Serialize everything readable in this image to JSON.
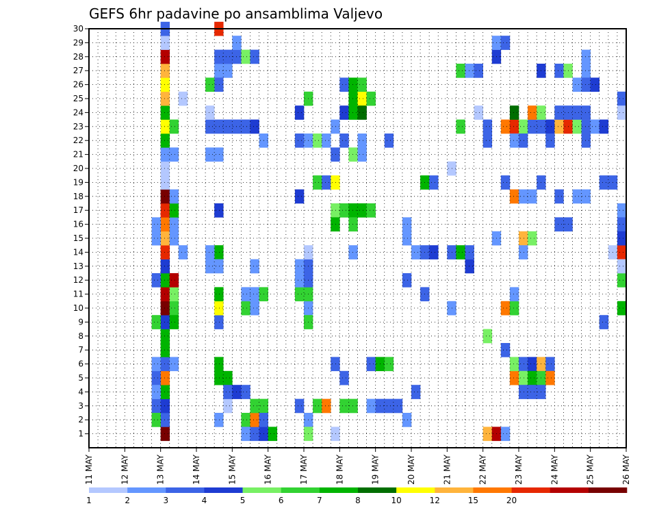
{
  "chart_data": {
    "type": "heatmap",
    "title": "GEFS 6hr padavine po ansamblima Valjevo",
    "xlabel": "",
    "ylabel": "",
    "x_ticks": [
      "11 MAY",
      "12 MAY",
      "13 MAY",
      "14 MAY",
      "15 MAY",
      "16 MAY",
      "17 MAY",
      "18 MAY",
      "19 MAY",
      "20 MAY",
      "21 MAY",
      "22 MAY",
      "23 MAY",
      "24 MAY",
      "25 MAY",
      "26 MAY"
    ],
    "y_ticks": [
      "1",
      "2",
      "3",
      "4",
      "5",
      "6",
      "7",
      "8",
      "9",
      "10",
      "11",
      "12",
      "13",
      "14",
      "15",
      "16",
      "17",
      "18",
      "19",
      "20",
      "21",
      "22",
      "23",
      "24",
      "25",
      "26",
      "27",
      "28",
      "29",
      "30"
    ],
    "xlim": [
      0,
      60
    ],
    "ylim": [
      0,
      30
    ],
    "grid": true,
    "legend_position": "bottom",
    "levels": [
      "1",
      "2",
      "3",
      "4",
      "5",
      "6",
      "7",
      "8",
      "10",
      "12",
      "15",
      "20"
    ],
    "colors": [
      "#b4c8ff",
      "#6496ff",
      "#3c64e6",
      "#1e3cd2",
      "#78f064",
      "#32d232",
      "#00b400",
      "#006e00",
      "#ffff00",
      "#ffb43c",
      "#ff7800",
      "#e62800",
      "#b40000",
      "#780000"
    ],
    "cells": [
      [
        8,
        1,
        14
      ],
      [
        8,
        2,
        3
      ],
      [
        8,
        3,
        4
      ],
      [
        8,
        4,
        7
      ],
      [
        8,
        5,
        11
      ],
      [
        8,
        6,
        3
      ],
      [
        8,
        7,
        7
      ],
      [
        8,
        8,
        7
      ],
      [
        8,
        9,
        4
      ],
      [
        8,
        10,
        14
      ],
      [
        8,
        11,
        13
      ],
      [
        8,
        12,
        7
      ],
      [
        8,
        13,
        4
      ],
      [
        8,
        14,
        12
      ],
      [
        8,
        15,
        10
      ],
      [
        8,
        16,
        11
      ],
      [
        8,
        17,
        12
      ],
      [
        8,
        18,
        14
      ],
      [
        8,
        19,
        1
      ],
      [
        8,
        20,
        1
      ],
      [
        8,
        21,
        2
      ],
      [
        8,
        22,
        7
      ],
      [
        8,
        23,
        9
      ],
      [
        8,
        24,
        7
      ],
      [
        8,
        25,
        10
      ],
      [
        8,
        26,
        9
      ],
      [
        8,
        27,
        10
      ],
      [
        8,
        28,
        13
      ],
      [
        8,
        29,
        1
      ],
      [
        8,
        30,
        3
      ],
      [
        7,
        9,
        6
      ],
      [
        7,
        5,
        3
      ],
      [
        7,
        3,
        3
      ],
      [
        7,
        2,
        6
      ],
      [
        7,
        4,
        2
      ],
      [
        7,
        6,
        2
      ],
      [
        7,
        15,
        2
      ],
      [
        7,
        16,
        2
      ],
      [
        7,
        12,
        3
      ],
      [
        9,
        10,
        6
      ],
      [
        9,
        11,
        5
      ],
      [
        9,
        9,
        7
      ],
      [
        9,
        12,
        13
      ],
      [
        9,
        15,
        2
      ],
      [
        9,
        16,
        2
      ],
      [
        9,
        17,
        7
      ],
      [
        9,
        18,
        2
      ],
      [
        9,
        23,
        6
      ],
      [
        9,
        21,
        2
      ],
      [
        9,
        6,
        2
      ],
      [
        10,
        25,
        1
      ],
      [
        10,
        14,
        2
      ],
      [
        14,
        27,
        2
      ],
      [
        14,
        28,
        3
      ],
      [
        14,
        14,
        7
      ],
      [
        14,
        13,
        2
      ],
      [
        14,
        9,
        3
      ],
      [
        14,
        10,
        9
      ],
      [
        14,
        11,
        7
      ],
      [
        14,
        6,
        7
      ],
      [
        14,
        5,
        7
      ],
      [
        14,
        23,
        3
      ],
      [
        14,
        21,
        2
      ],
      [
        14,
        26,
        3
      ],
      [
        14,
        17,
        4
      ],
      [
        14,
        2,
        2
      ],
      [
        14,
        30,
        12
      ],
      [
        13,
        26,
        6
      ],
      [
        13,
        21,
        2
      ],
      [
        13,
        23,
        3
      ],
      [
        13,
        14,
        2
      ],
      [
        13,
        13,
        2
      ],
      [
        13,
        24,
        1
      ],
      [
        15,
        27,
        2
      ],
      [
        15,
        28,
        3
      ],
      [
        15,
        23,
        3
      ],
      [
        15,
        5,
        7
      ],
      [
        15,
        3,
        1
      ],
      [
        15,
        4,
        3
      ],
      [
        16,
        28,
        3
      ],
      [
        16,
        23,
        3
      ],
      [
        16,
        29,
        2
      ],
      [
        16,
        4,
        4
      ],
      [
        17,
        28,
        5
      ],
      [
        17,
        23,
        3
      ],
      [
        17,
        10,
        6
      ],
      [
        17,
        11,
        2
      ],
      [
        17,
        2,
        6
      ],
      [
        17,
        1,
        2
      ],
      [
        17,
        4,
        3
      ],
      [
        18,
        28,
        3
      ],
      [
        18,
        23,
        4
      ],
      [
        18,
        13,
        2
      ],
      [
        18,
        10,
        2
      ],
      [
        18,
        11,
        2
      ],
      [
        18,
        1,
        3
      ],
      [
        18,
        2,
        11
      ],
      [
        18,
        3,
        6
      ],
      [
        19,
        11,
        6
      ],
      [
        19,
        3,
        6
      ],
      [
        19,
        1,
        4
      ],
      [
        19,
        2,
        3
      ],
      [
        19,
        22,
        2
      ],
      [
        20,
        1,
        7
      ],
      [
        23,
        24,
        4
      ],
      [
        23,
        18,
        4
      ],
      [
        23,
        22,
        3
      ],
      [
        23,
        11,
        6
      ],
      [
        23,
        12,
        2
      ],
      [
        23,
        13,
        2
      ],
      [
        23,
        3,
        3
      ],
      [
        24,
        10,
        2
      ],
      [
        24,
        11,
        6
      ],
      [
        24,
        12,
        3
      ],
      [
        24,
        13,
        3
      ],
      [
        24,
        14,
        1
      ],
      [
        24,
        22,
        2
      ],
      [
        24,
        25,
        6
      ],
      [
        24,
        2,
        2
      ],
      [
        24,
        1,
        5
      ],
      [
        24,
        9,
        6
      ],
      [
        25,
        19,
        6
      ],
      [
        25,
        22,
        5
      ],
      [
        25,
        3,
        6
      ],
      [
        26,
        19,
        3
      ],
      [
        26,
        3,
        11
      ],
      [
        26,
        22,
        2
      ],
      [
        27,
        19,
        9
      ],
      [
        27,
        23,
        2
      ],
      [
        27,
        17,
        5
      ],
      [
        27,
        16,
        7
      ],
      [
        27,
        6,
        3
      ],
      [
        27,
        21,
        3
      ],
      [
        27,
        1,
        1
      ],
      [
        28,
        17,
        6
      ],
      [
        28,
        26,
        3
      ],
      [
        28,
        24,
        4
      ],
      [
        28,
        22,
        3
      ],
      [
        28,
        3,
        6
      ],
      [
        28,
        5,
        3
      ],
      [
        29,
        17,
        7
      ],
      [
        29,
        26,
        7
      ],
      [
        29,
        25,
        7
      ],
      [
        29,
        24,
        7
      ],
      [
        29,
        16,
        6
      ],
      [
        29,
        3,
        6
      ],
      [
        29,
        14,
        2
      ],
      [
        29,
        21,
        5
      ],
      [
        30,
        17,
        7
      ],
      [
        30,
        25,
        9
      ],
      [
        30,
        26,
        6
      ],
      [
        30,
        24,
        8
      ],
      [
        30,
        21,
        2
      ],
      [
        30,
        22,
        2
      ],
      [
        31,
        17,
        6
      ],
      [
        31,
        25,
        6
      ],
      [
        31,
        6,
        3
      ],
      [
        31,
        3,
        2
      ],
      [
        32,
        6,
        7
      ],
      [
        32,
        3,
        3
      ],
      [
        33,
        6,
        6
      ],
      [
        33,
        22,
        3
      ],
      [
        33,
        3,
        3
      ],
      [
        34,
        3,
        3
      ],
      [
        35,
        2,
        2
      ],
      [
        35,
        15,
        2
      ],
      [
        35,
        16,
        2
      ],
      [
        35,
        12,
        3
      ],
      [
        36,
        14,
        2
      ],
      [
        36,
        4,
        3
      ],
      [
        37,
        11,
        3
      ],
      [
        37,
        19,
        7
      ],
      [
        37,
        14,
        3
      ],
      [
        38,
        19,
        3
      ],
      [
        38,
        14,
        4
      ],
      [
        40,
        14,
        3
      ],
      [
        40,
        10,
        2
      ],
      [
        40,
        20,
        1
      ],
      [
        41,
        14,
        7
      ],
      [
        41,
        23,
        6
      ],
      [
        41,
        27,
        6
      ],
      [
        42,
        13,
        4
      ],
      [
        42,
        14,
        3
      ],
      [
        42,
        27,
        2
      ],
      [
        43,
        27,
        3
      ],
      [
        43,
        24,
        1
      ],
      [
        44,
        1,
        10
      ],
      [
        44,
        8,
        5
      ],
      [
        44,
        23,
        3
      ],
      [
        44,
        22,
        3
      ],
      [
        45,
        1,
        13
      ],
      [
        45,
        15,
        2
      ],
      [
        45,
        28,
        4
      ],
      [
        45,
        29,
        2
      ],
      [
        46,
        19,
        3
      ],
      [
        46,
        10,
        11
      ],
      [
        46,
        23,
        11
      ],
      [
        46,
        7,
        3
      ],
      [
        46,
        29,
        3
      ],
      [
        46,
        1,
        2
      ],
      [
        47,
        10,
        6
      ],
      [
        47,
        11,
        2
      ],
      [
        47,
        23,
        12
      ],
      [
        47,
        18,
        11
      ],
      [
        47,
        22,
        2
      ],
      [
        47,
        24,
        8
      ],
      [
        47,
        5,
        11
      ],
      [
        47,
        6,
        5
      ],
      [
        48,
        6,
        3
      ],
      [
        48,
        5,
        5
      ],
      [
        48,
        23,
        5
      ],
      [
        48,
        22,
        3
      ],
      [
        48,
        4,
        3
      ],
      [
        48,
        18,
        2
      ],
      [
        48,
        15,
        10
      ],
      [
        48,
        14,
        2
      ],
      [
        49,
        6,
        4
      ],
      [
        49,
        5,
        7
      ],
      [
        49,
        23,
        3
      ],
      [
        49,
        24,
        11
      ],
      [
        49,
        4,
        3
      ],
      [
        49,
        15,
        5
      ],
      [
        49,
        18,
        2
      ],
      [
        50,
        6,
        10
      ],
      [
        50,
        5,
        6
      ],
      [
        50,
        23,
        3
      ],
      [
        50,
        24,
        5
      ],
      [
        50,
        4,
        3
      ],
      [
        50,
        27,
        4
      ],
      [
        50,
        19,
        3
      ],
      [
        51,
        6,
        3
      ],
      [
        51,
        5,
        11
      ],
      [
        51,
        23,
        4
      ],
      [
        51,
        22,
        3
      ],
      [
        52,
        23,
        10
      ],
      [
        52,
        16,
        3
      ],
      [
        52,
        18,
        3
      ],
      [
        52,
        27,
        3
      ],
      [
        52,
        24,
        3
      ],
      [
        53,
        23,
        12
      ],
      [
        53,
        24,
        3
      ],
      [
        53,
        27,
        5
      ],
      [
        53,
        16,
        3
      ],
      [
        54,
        23,
        5
      ],
      [
        54,
        24,
        3
      ],
      [
        54,
        18,
        2
      ],
      [
        54,
        26,
        2
      ],
      [
        55,
        22,
        3
      ],
      [
        55,
        23,
        3
      ],
      [
        55,
        24,
        3
      ],
      [
        55,
        18,
        2
      ],
      [
        55,
        27,
        2
      ],
      [
        55,
        28,
        2
      ],
      [
        55,
        26,
        3
      ],
      [
        56,
        23,
        2
      ],
      [
        56,
        26,
        4
      ],
      [
        57,
        23,
        4
      ],
      [
        57,
        19,
        3
      ],
      [
        57,
        9,
        3
      ],
      [
        58,
        19,
        3
      ],
      [
        58,
        14,
        1
      ],
      [
        59,
        17,
        2
      ],
      [
        59,
        16,
        3
      ],
      [
        59,
        14,
        12
      ],
      [
        59,
        15,
        4
      ],
      [
        59,
        25,
        3
      ],
      [
        59,
        12,
        6
      ],
      [
        59,
        13,
        1
      ],
      [
        59,
        10,
        7
      ],
      [
        59,
        24,
        1
      ]
    ]
  }
}
